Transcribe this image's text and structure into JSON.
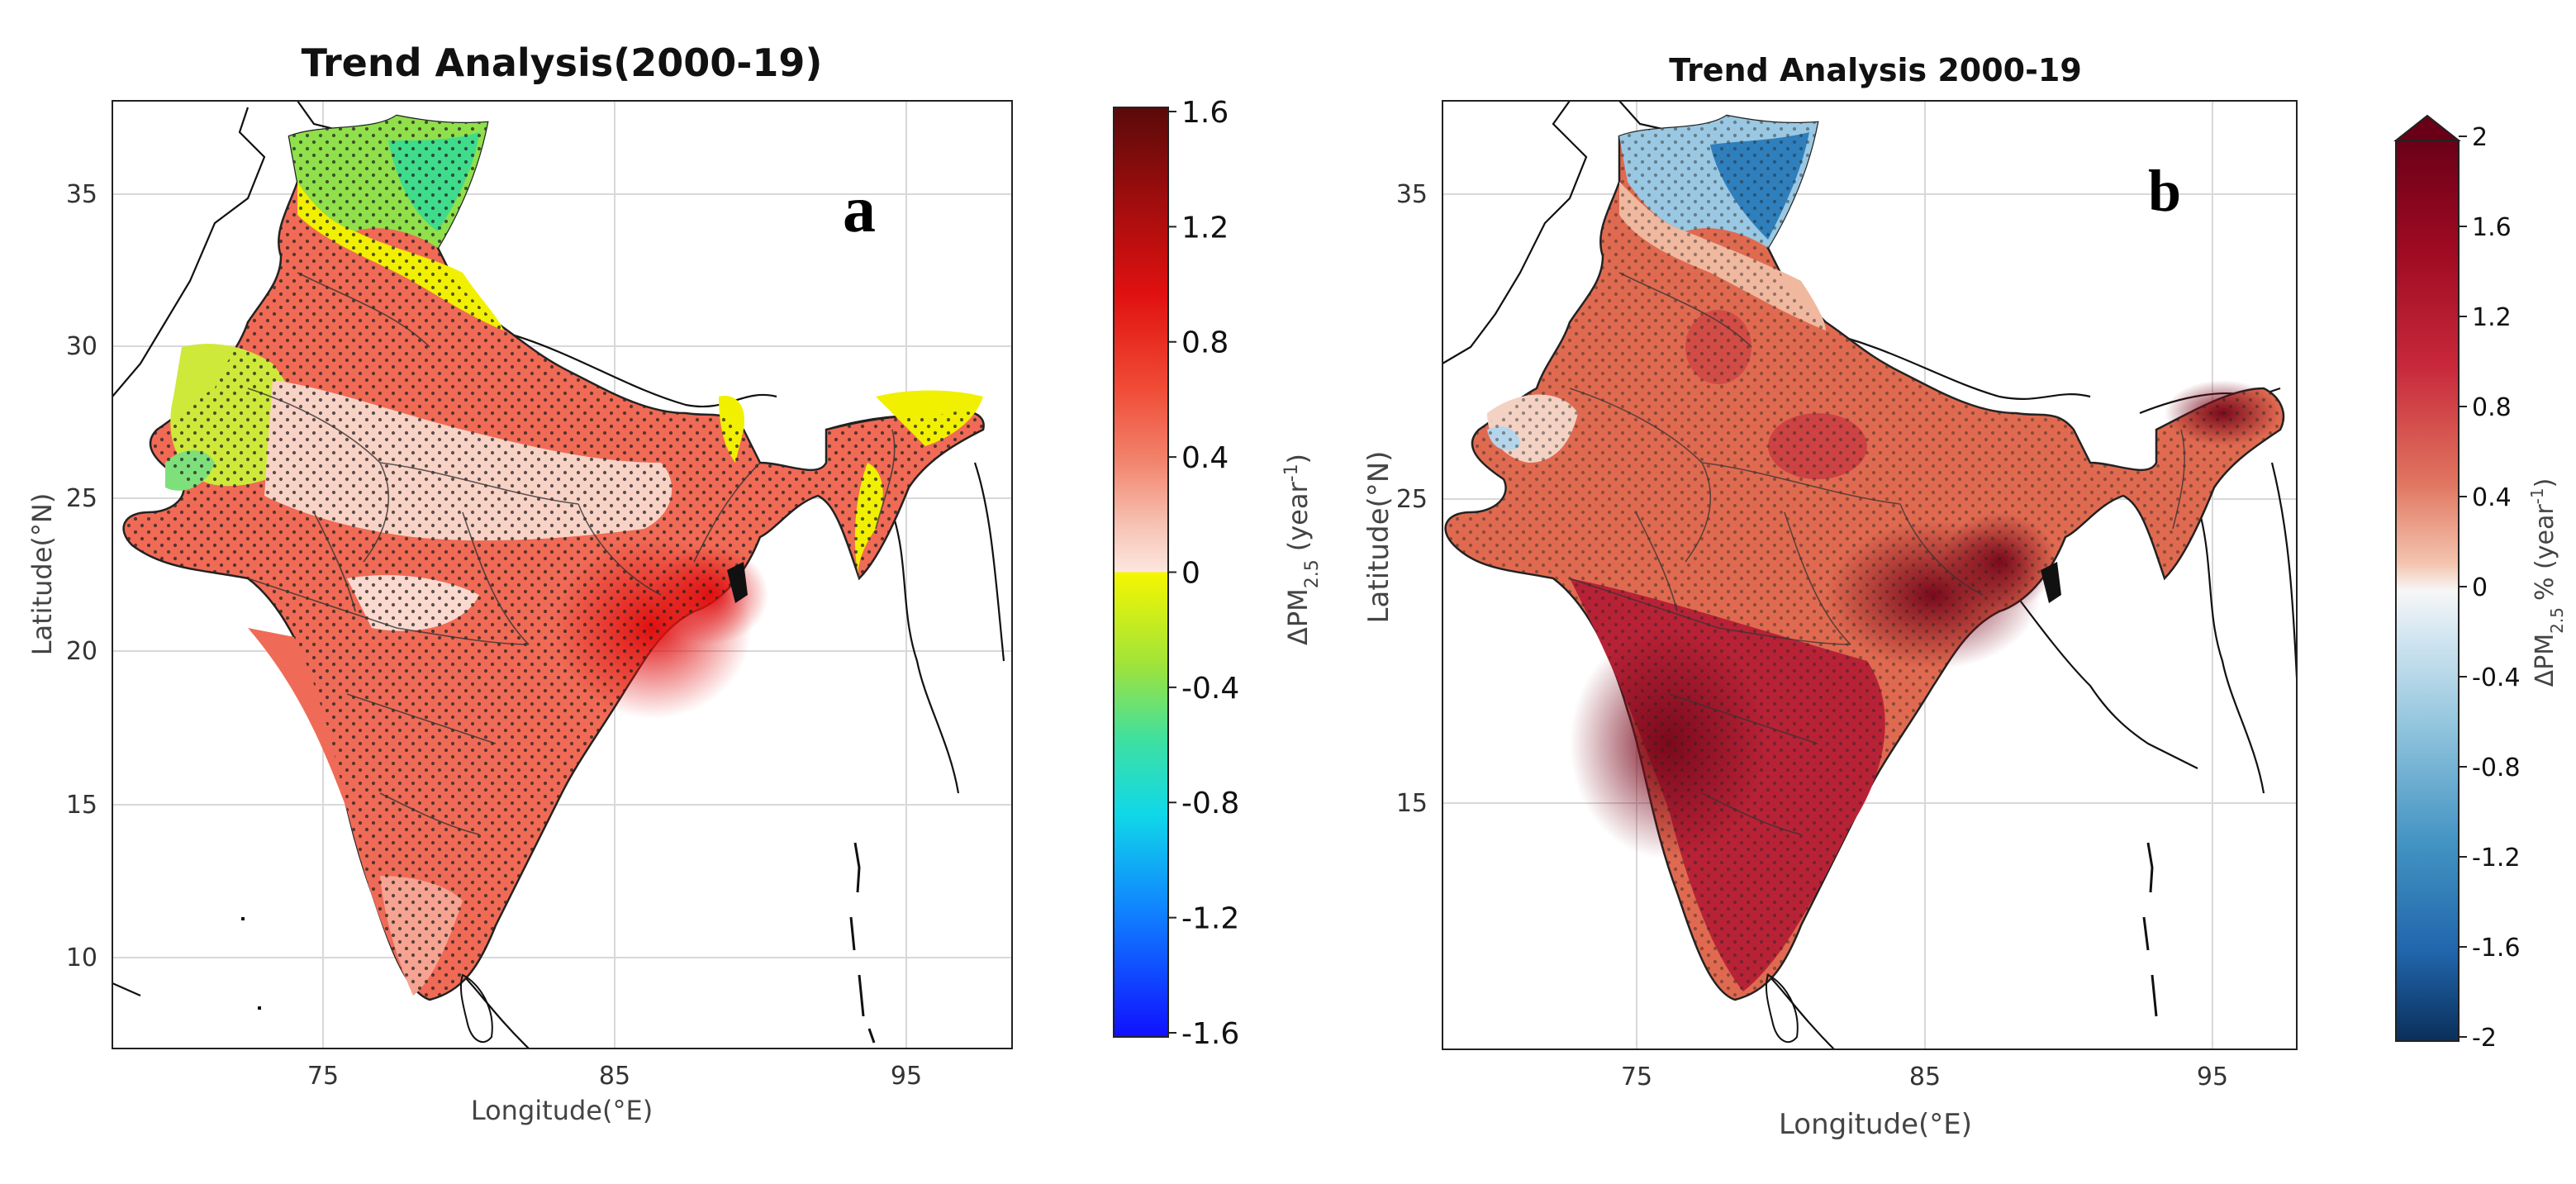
{
  "panels": [
    {
      "id": "a",
      "title": "Trend Analysis(2000-19)",
      "letter": "a",
      "xlabel": "Longitude(°E)",
      "ylabel": "Latitude(°N)",
      "xticks": [
        "75",
        "85",
        "95"
      ],
      "yticks": [
        "35",
        "30",
        "25",
        "20",
        "15",
        "10"
      ],
      "colorbar": {
        "label": "ΔPM2.5 (year-1)",
        "label_main": "ΔPM",
        "label_sub": "2.5",
        "label_rest": "(year",
        "label_sup": "-1",
        "label_close": ")",
        "ticks": [
          "1.6",
          "1.2",
          "0.8",
          "0.4",
          "0",
          "-0.4",
          "-0.8",
          "-1.2",
          "-1.6"
        ],
        "range": [
          -1.6,
          1.6
        ]
      }
    },
    {
      "id": "b",
      "title": "Trend Analysis 2000-19",
      "letter": "b",
      "xlabel": "Longitude(°E)",
      "ylabel": "Latitude(°N)",
      "xticks": [
        "75",
        "85",
        "95"
      ],
      "yticks": [
        "35",
        "25",
        "15"
      ],
      "colorbar": {
        "label": "ΔPM2.5 % (year-1)",
        "label_main": "ΔPM",
        "label_sub": "2.5",
        "label_rest": "% (year",
        "label_sup": "-1",
        "label_close": ")",
        "ticks": [
          "2",
          "1.6",
          "1.2",
          "0.8",
          "0.4",
          "0",
          "-0.4",
          "-0.8",
          "-1.2",
          "-1.6",
          "-2"
        ],
        "range": [
          -2,
          2
        ]
      }
    }
  ],
  "colors": {
    "jet_top": "#5a0a0a",
    "jet_bottom": "#1010ff",
    "rdbu_top": "#6a0018",
    "rdbu_bottom": "#0a2f5a"
  }
}
